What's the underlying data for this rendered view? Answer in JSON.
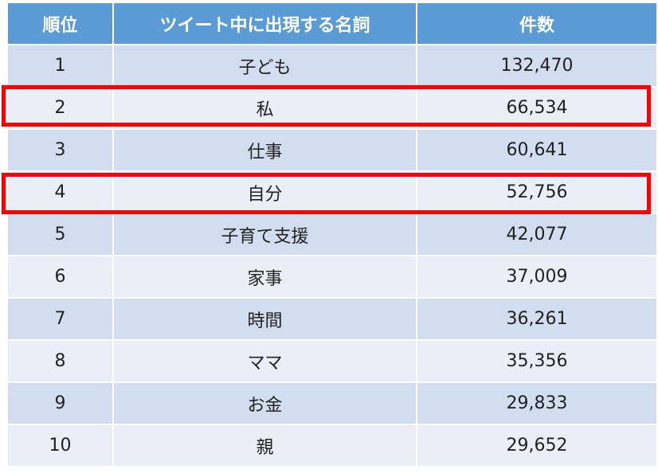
{
  "table": {
    "headers": {
      "rank": "順位",
      "noun": "ツイート中に出現する名詞",
      "count": "件数"
    },
    "rows": [
      {
        "rank": "1",
        "noun": "子ども",
        "count": "132,470"
      },
      {
        "rank": "2",
        "noun": "私",
        "count": "66,534"
      },
      {
        "rank": "3",
        "noun": "仕事",
        "count": "60,641"
      },
      {
        "rank": "4",
        "noun": "自分",
        "count": "52,756"
      },
      {
        "rank": "5",
        "noun": "子育て支援",
        "count": "42,077"
      },
      {
        "rank": "6",
        "noun": "家事",
        "count": "37,009"
      },
      {
        "rank": "7",
        "noun": "時間",
        "count": "36,261"
      },
      {
        "rank": "8",
        "noun": "ママ",
        "count": "35,356"
      },
      {
        "rank": "9",
        "noun": "お金",
        "count": "29,833"
      },
      {
        "rank": "10",
        "noun": "親",
        "count": "29,652"
      }
    ],
    "highlighted_ranks": [
      "2",
      "4"
    ]
  },
  "colors": {
    "header_bg": "#5b9bd5",
    "row_odd_bg": "#d2deef",
    "row_even_bg": "#eaeff7",
    "highlight_border": "#ff0000"
  }
}
